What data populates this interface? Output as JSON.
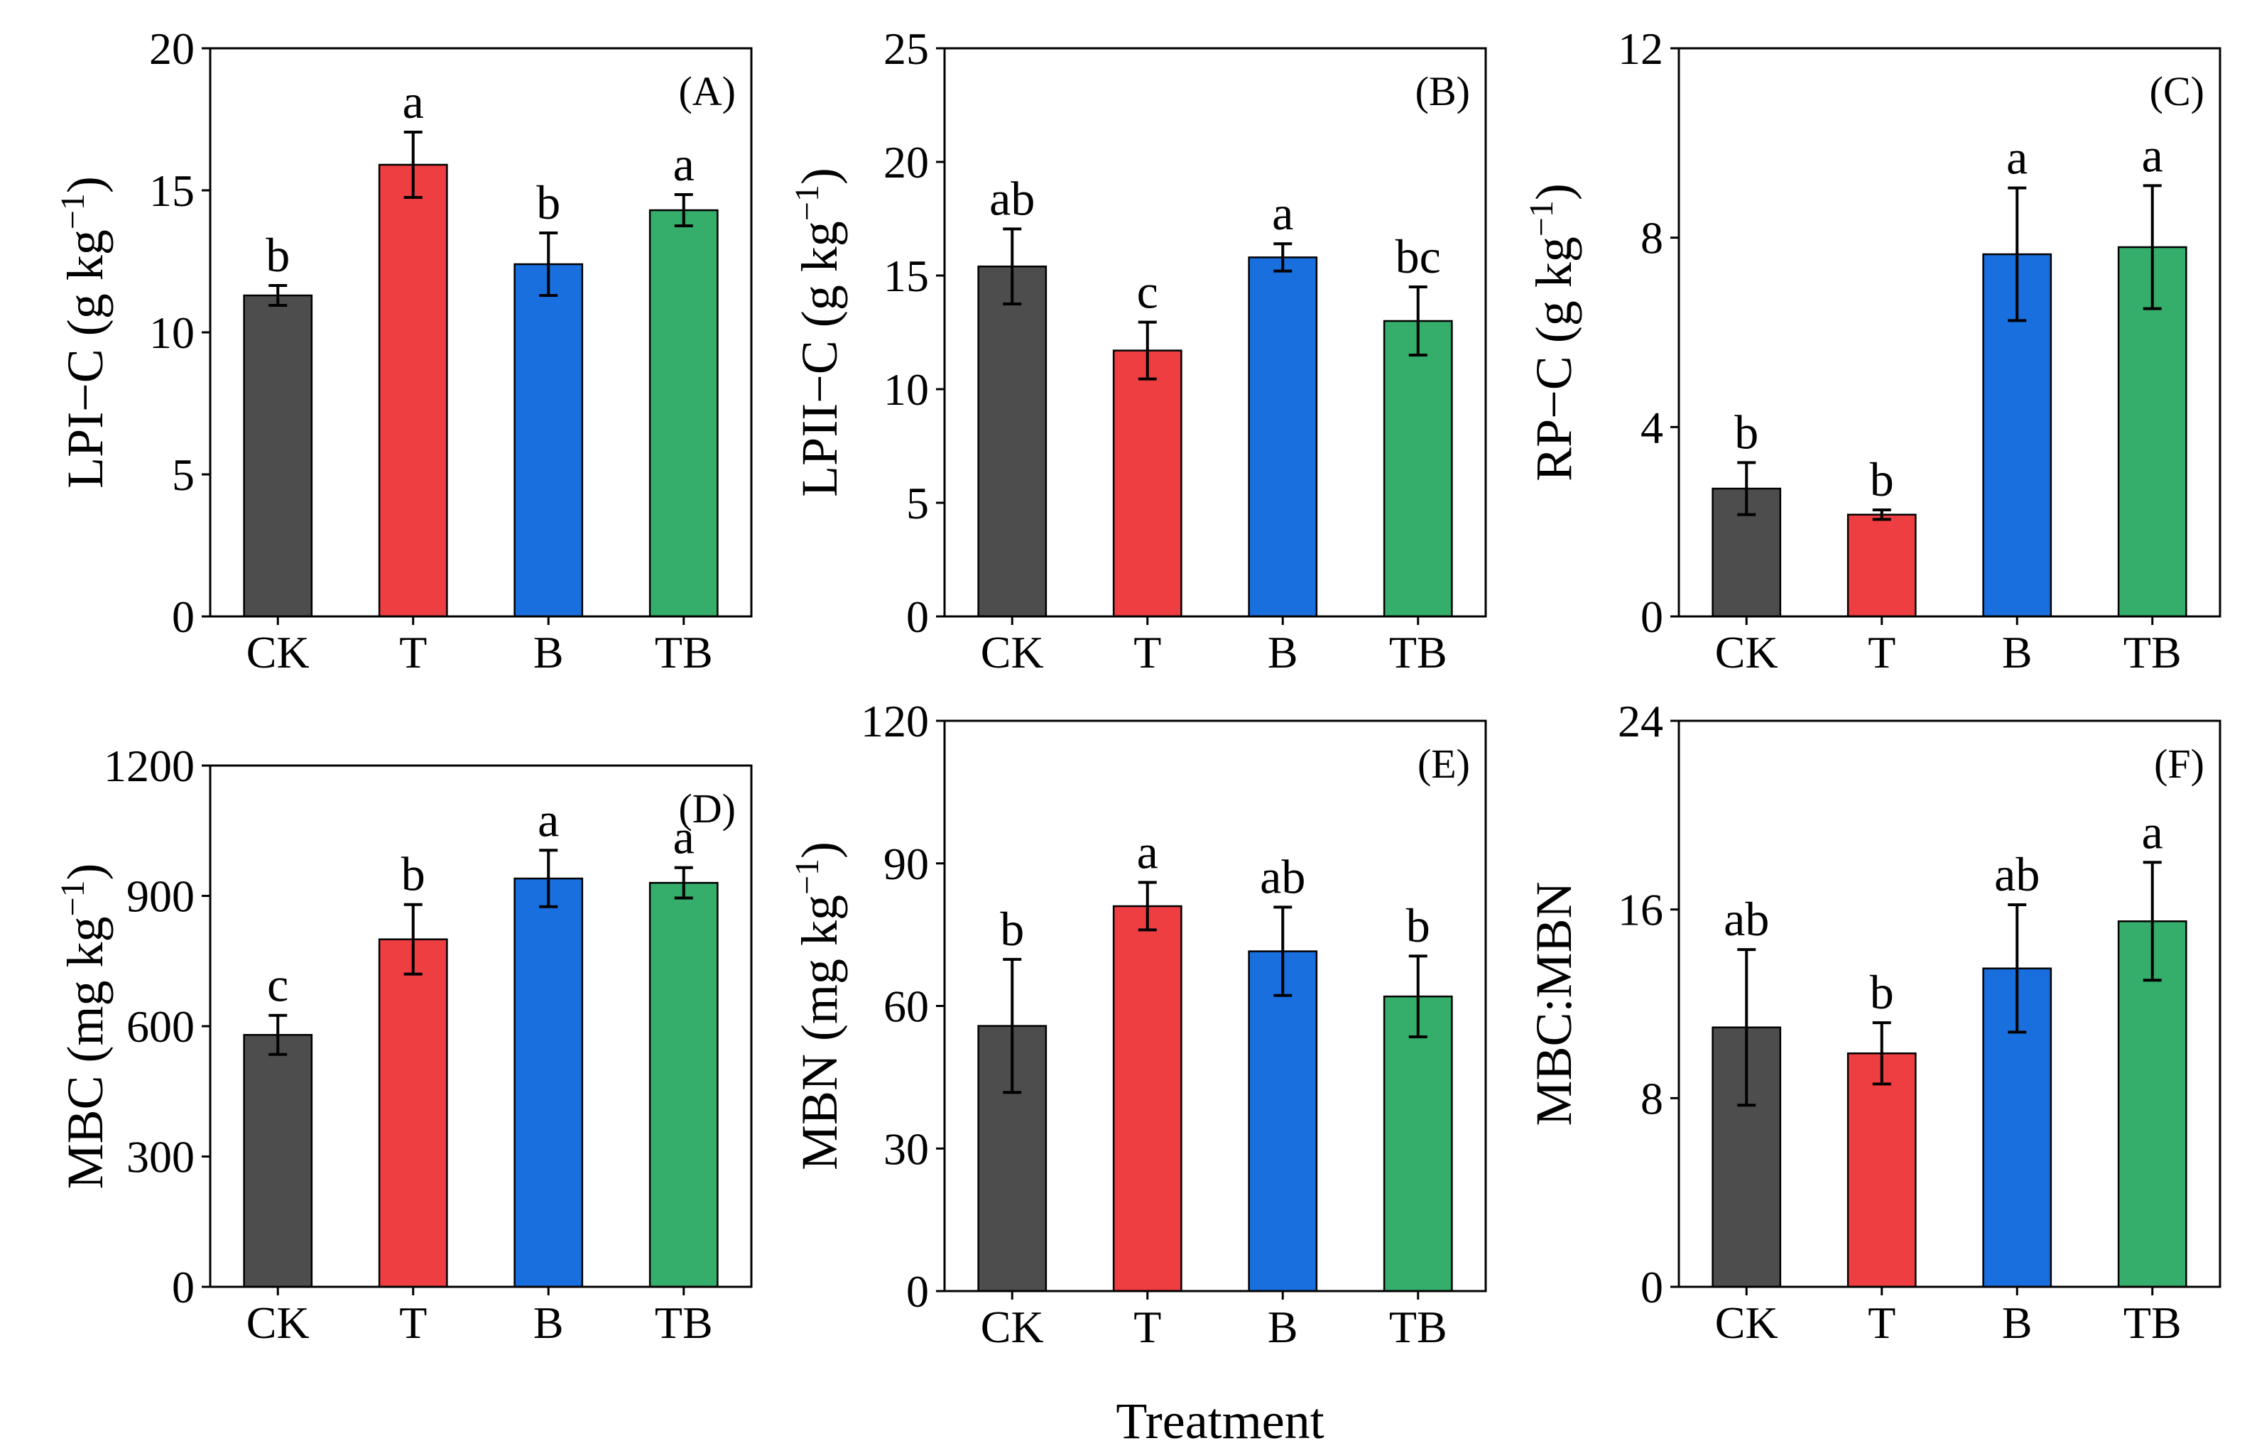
{
  "figure": {
    "xlabel": "Treatment",
    "categories": [
      "CK",
      "T",
      "B",
      "TB"
    ],
    "colors": [
      "#4d4d4d",
      "#ee3e42",
      "#1a6fdf",
      "#35ad6b"
    ]
  },
  "chart_data": [
    {
      "type": "bar",
      "panel": "(A)",
      "ylabel_main": "LPI−C (g kg",
      "ylabel_sup": "−1",
      "ylabel_tail": ")",
      "categories": [
        "CK",
        "T",
        "B",
        "TB"
      ],
      "values": [
        11.3,
        15.9,
        12.4,
        14.3
      ],
      "errors": [
        0.35,
        1.15,
        1.1,
        0.55
      ],
      "letters": [
        "b",
        "a",
        "b",
        "a"
      ],
      "ylim": [
        0,
        20
      ],
      "yticks": [
        0,
        5,
        10,
        15,
        20
      ]
    },
    {
      "type": "bar",
      "panel": "(B)",
      "ylabel_main": "LPII−C (g kg",
      "ylabel_sup": "−1",
      "ylabel_tail": ")",
      "categories": [
        "CK",
        "T",
        "B",
        "TB"
      ],
      "values": [
        15.4,
        11.7,
        15.8,
        13.0
      ],
      "errors": [
        1.65,
        1.25,
        0.6,
        1.5
      ],
      "letters": [
        "ab",
        "c",
        "a",
        "bc"
      ],
      "ylim": [
        0,
        25
      ],
      "yticks": [
        0,
        5,
        10,
        15,
        20,
        25
      ]
    },
    {
      "type": "bar",
      "panel": "(C)",
      "ylabel_main": "RP−C (g kg",
      "ylabel_sup": "−1",
      "ylabel_tail": ")",
      "categories": [
        "CK",
        "T",
        "B",
        "TB"
      ],
      "values": [
        2.7,
        2.15,
        7.65,
        7.8
      ],
      "errors": [
        0.55,
        0.1,
        1.4,
        1.3
      ],
      "letters": [
        "b",
        "b",
        "a",
        "a"
      ],
      "ylim": [
        0,
        12
      ],
      "yticks": [
        0,
        4,
        8,
        12
      ]
    },
    {
      "type": "bar",
      "panel": "(D)",
      "ylabel_main": "MBC (mg kg",
      "ylabel_sup": "−1",
      "ylabel_tail": ")",
      "categories": [
        "CK",
        "T",
        "B",
        "TB"
      ],
      "values": [
        580,
        800,
        940,
        930
      ],
      "errors": [
        45,
        80,
        65,
        35
      ],
      "letters": [
        "c",
        "b",
        "a",
        "a"
      ],
      "ylim": [
        0,
        1200
      ],
      "yticks": [
        0,
        300,
        600,
        900,
        1200
      ]
    },
    {
      "type": "bar",
      "panel": "(E)",
      "ylabel_main": "MBN (mg kg",
      "ylabel_sup": "−1",
      "ylabel_tail": ")",
      "categories": [
        "CK",
        "T",
        "B",
        "TB"
      ],
      "values": [
        55.8,
        81.0,
        71.5,
        62.0
      ],
      "errors": [
        14.0,
        5.0,
        9.3,
        8.5
      ],
      "letters": [
        "b",
        "a",
        "ab",
        "b"
      ],
      "ylim": [
        0,
        120
      ],
      "yticks": [
        0,
        30,
        60,
        90,
        120
      ]
    },
    {
      "type": "bar",
      "panel": "(F)",
      "ylabel_main": "MBC:MBN",
      "ylabel_sup": "",
      "ylabel_tail": "",
      "categories": [
        "CK",
        "T",
        "B",
        "TB"
      ],
      "values": [
        11.0,
        9.9,
        13.5,
        15.5
      ],
      "errors": [
        3.3,
        1.3,
        2.7,
        2.5
      ],
      "letters": [
        "ab",
        "b",
        "ab",
        "a"
      ],
      "ylim": [
        0,
        24
      ],
      "yticks": [
        0,
        8,
        16,
        24
      ]
    }
  ]
}
